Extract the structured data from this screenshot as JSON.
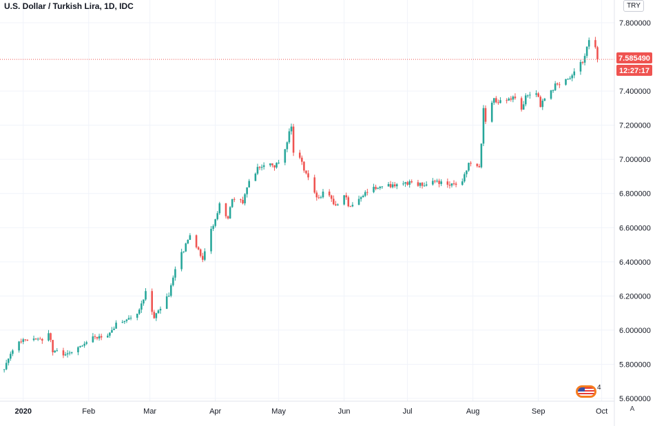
{
  "header": {
    "title": "U.S. Dollar / Turkish Lira, 1D, IDC",
    "currency_button": "TRY",
    "auto_scale_button": "A"
  },
  "price_tags": {
    "last_price": "7.585490",
    "countdown": "12:27:17"
  },
  "events_badge": {
    "count": "4",
    "icon": "us-flag-icon"
  },
  "colors": {
    "up": "#26a69a",
    "down": "#ef5350",
    "last_price_tag": "#ef5350",
    "last_price_line": "#ef5350",
    "grid": "#f0f3fa",
    "axis_text": "#131722"
  },
  "chart_data": {
    "type": "candlestick",
    "title": "U.S. Dollar / Turkish Lira, 1D, IDC",
    "symbol": "USDTRY",
    "currency": "TRY",
    "interval": "1D",
    "source": "IDC",
    "x_axis_labels": [
      "2020",
      "Feb",
      "Mar",
      "Apr",
      "May",
      "Jun",
      "Jul",
      "Aug",
      "Sep",
      "Oct"
    ],
    "y_axis_labels": [
      "7.800000",
      "7.400000",
      "7.200000",
      "7.000000",
      "6.800000",
      "6.600000",
      "6.400000",
      "6.200000",
      "6.000000",
      "5.800000",
      "5.600000"
    ],
    "ylim": [
      5.59,
      7.9
    ],
    "xlim": [
      "2019-12-21",
      "2020-10-07"
    ],
    "grid": true,
    "last_price": 7.58549,
    "start_date": "2019-12-23",
    "weekdays_only": true,
    "anchors": [
      [
        "2019-12-23",
        5.78
      ],
      [
        "2019-12-26",
        5.87
      ],
      [
        "2019-12-30",
        5.94
      ],
      [
        "2020-01-03",
        5.95
      ],
      [
        "2020-01-08",
        5.94
      ],
      [
        "2020-01-13",
        5.97
      ],
      [
        "2020-01-14",
        5.93
      ],
      [
        "2020-01-15",
        5.88
      ],
      [
        "2020-01-20",
        5.86
      ],
      [
        "2020-01-24",
        5.88
      ],
      [
        "2020-01-27",
        5.9
      ],
      [
        "2020-01-31",
        5.94
      ],
      [
        "2020-02-05",
        5.96
      ],
      [
        "2020-02-10",
        5.98
      ],
      [
        "2020-02-14",
        6.03
      ],
      [
        "2020-02-19",
        6.05
      ],
      [
        "2020-02-24",
        6.1
      ],
      [
        "2020-02-28",
        6.22
      ],
      [
        "2020-03-03",
        6.08
      ],
      [
        "2020-03-05",
        6.12
      ],
      [
        "2020-03-10",
        6.2
      ],
      [
        "2020-03-13",
        6.35
      ],
      [
        "2020-03-16",
        6.45
      ],
      [
        "2020-03-20",
        6.55
      ],
      [
        "2020-03-23",
        6.5
      ],
      [
        "2020-03-26",
        6.42
      ],
      [
        "2020-03-30",
        6.6
      ],
      [
        "2020-04-01",
        6.65
      ],
      [
        "2020-04-03",
        6.75
      ],
      [
        "2020-04-07",
        6.65
      ],
      [
        "2020-04-09",
        6.78
      ],
      [
        "2020-04-14",
        6.75
      ],
      [
        "2020-04-16",
        6.85
      ],
      [
        "2020-04-21",
        6.95
      ],
      [
        "2020-04-24",
        6.98
      ],
      [
        "2020-04-29",
        6.96
      ],
      [
        "2020-05-01",
        6.97
      ],
      [
        "2020-05-05",
        7.1
      ],
      [
        "2020-05-07",
        7.2
      ],
      [
        "2020-05-08",
        7.05
      ],
      [
        "2020-05-12",
        6.98
      ],
      [
        "2020-05-15",
        6.88
      ],
      [
        "2020-05-19",
        6.78
      ],
      [
        "2020-05-22",
        6.8
      ],
      [
        "2020-05-26",
        6.77
      ],
      [
        "2020-05-28",
        6.72
      ],
      [
        "2020-06-01",
        6.8
      ],
      [
        "2020-06-03",
        6.73
      ],
      [
        "2020-06-08",
        6.77
      ],
      [
        "2020-06-12",
        6.82
      ],
      [
        "2020-06-17",
        6.84
      ],
      [
        "2020-06-22",
        6.85
      ],
      [
        "2020-06-26",
        6.85
      ],
      [
        "2020-07-03",
        6.86
      ],
      [
        "2020-07-10",
        6.86
      ],
      [
        "2020-07-17",
        6.86
      ],
      [
        "2020-07-21",
        6.85
      ],
      [
        "2020-07-24",
        6.84
      ],
      [
        "2020-07-28",
        6.9
      ],
      [
        "2020-07-30",
        6.98
      ],
      [
        "2020-08-03",
        6.97
      ],
      [
        "2020-08-04",
        6.95
      ],
      [
        "2020-08-05",
        7.1
      ],
      [
        "2020-08-06",
        7.3
      ],
      [
        "2020-08-07",
        7.22
      ],
      [
        "2020-08-11",
        7.35
      ],
      [
        "2020-08-14",
        7.33
      ],
      [
        "2020-08-18",
        7.37
      ],
      [
        "2020-08-21",
        7.35
      ],
      [
        "2020-08-24",
        7.3
      ],
      [
        "2020-08-26",
        7.36
      ],
      [
        "2020-08-31",
        7.38
      ],
      [
        "2020-09-02",
        7.32
      ],
      [
        "2020-09-04",
        7.37
      ],
      [
        "2020-09-08",
        7.42
      ],
      [
        "2020-09-11",
        7.45
      ],
      [
        "2020-09-15",
        7.46
      ],
      [
        "2020-09-18",
        7.5
      ],
      [
        "2020-09-22",
        7.57
      ],
      [
        "2020-09-24",
        7.66
      ],
      [
        "2020-09-25",
        7.7
      ],
      [
        "2020-09-28",
        7.64
      ],
      [
        "2020-09-29",
        7.58
      ]
    ]
  }
}
